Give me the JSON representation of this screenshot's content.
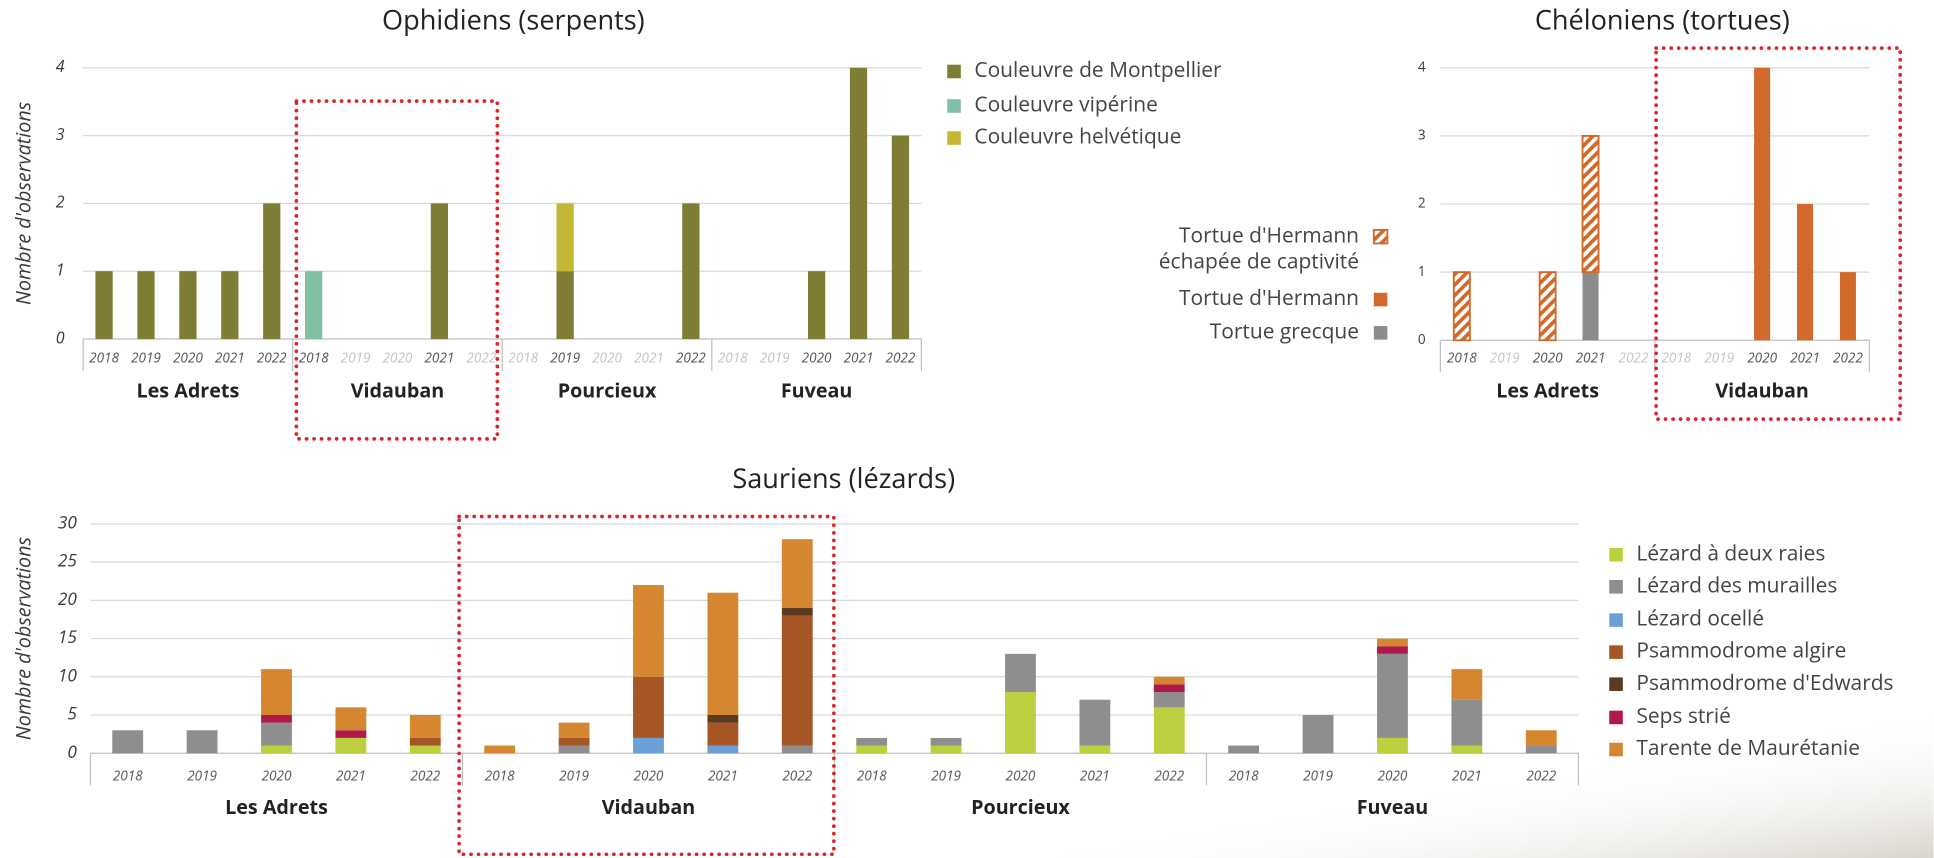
{
  "chart_data": [
    {
      "type": "bar",
      "stacked": true,
      "title": "Ophidiens (serpents)",
      "y_label": "Nombre d'observations",
      "groups": [
        "Les Adrets",
        "Vidauban",
        "Pourcieux",
        "Fuveau"
      ],
      "categories": [
        "2018",
        "2019",
        "2020",
        "2021",
        "2022",
        "2018",
        "2019",
        "2020",
        "2021",
        "2022",
        "2018",
        "2019",
        "2020",
        "2021",
        "2022",
        "2018",
        "2019",
        "2020",
        "2021",
        "2022"
      ],
      "series": [
        {
          "name": "Couleuvre de Montpellier",
          "color": "#7f7c33",
          "values": [
            1,
            1,
            1,
            1,
            2,
            0,
            0,
            0,
            2,
            0,
            0,
            1,
            0,
            0,
            2,
            0,
            0,
            1,
            4,
            3
          ]
        },
        {
          "name": "Couleuvre vipérine",
          "color": "#80c0a2",
          "values": [
            0,
            0,
            0,
            0,
            0,
            1,
            0,
            0,
            0,
            0,
            0,
            0,
            0,
            0,
            0,
            0,
            0,
            0,
            0,
            0
          ]
        },
        {
          "name": "Couleuvre helvétique",
          "color": "#c5b634",
          "values": [
            0,
            0,
            0,
            0,
            0,
            0,
            0,
            0,
            0,
            0,
            0,
            1,
            0,
            0,
            0,
            0,
            0,
            0,
            0,
            0
          ]
        }
      ],
      "ylim": [
        0,
        4
      ],
      "yticks": [
        0,
        1,
        2,
        3,
        4
      ],
      "grid": true,
      "legend": "right"
    },
    {
      "type": "bar",
      "stacked": true,
      "title": "Chéloniens (tortues)",
      "groups": [
        "Les Adrets",
        "Vidauban"
      ],
      "categories": [
        "2018",
        "2019",
        "2020",
        "2021",
        "2022",
        "2018",
        "2019",
        "2020",
        "2021",
        "2022"
      ],
      "series": [
        {
          "name": "Tortue grecque",
          "color": "#8c8c8c",
          "values": [
            0,
            0,
            0,
            1,
            0,
            0,
            0,
            0,
            0,
            0
          ]
        },
        {
          "name": "Tortue d'Hermann",
          "color": "#d0692a",
          "values": [
            0,
            0,
            0,
            0,
            0,
            0,
            0,
            4,
            2,
            1
          ]
        },
        {
          "name": "Tortue d'Hermann\néchapée de captivité",
          "color": "#d0692a",
          "pattern": "hatch",
          "values": [
            1,
            0,
            1,
            2,
            0,
            0,
            0,
            0,
            0,
            0
          ]
        }
      ],
      "ylim": [
        0,
        4
      ],
      "yticks": [
        0,
        1,
        2,
        3,
        4
      ],
      "grid": true,
      "legend": "left"
    },
    {
      "type": "bar",
      "stacked": true,
      "title": "Sauriens (lézards)",
      "y_label": "Nombre d'observations",
      "groups": [
        "Les Adrets",
        "Vidauban",
        "Pourcieux",
        "Fuveau"
      ],
      "categories": [
        "2018",
        "2019",
        "2020",
        "2021",
        "2022",
        "2018",
        "2019",
        "2020",
        "2021",
        "2022",
        "2018",
        "2019",
        "2020",
        "2021",
        "2022",
        "2018",
        "2019",
        "2020",
        "2021",
        "2022"
      ],
      "series": [
        {
          "name": "Lézard à deux raies",
          "color": "#bccf3f",
          "values": [
            0,
            0,
            1,
            2,
            1,
            0,
            0,
            0,
            0,
            0,
            1,
            1,
            8,
            1,
            6,
            0,
            0,
            2,
            1,
            0
          ]
        },
        {
          "name": "Lézard des murailles",
          "color": "#8e8e8e",
          "values": [
            3,
            3,
            3,
            0,
            0,
            0,
            1,
            0,
            0,
            1,
            1,
            1,
            5,
            6,
            2,
            1,
            5,
            11,
            6,
            1
          ]
        },
        {
          "name": "Lézard ocellé",
          "color": "#6b9fd5",
          "values": [
            0,
            0,
            0,
            0,
            0,
            0,
            0,
            2,
            1,
            0,
            0,
            0,
            0,
            0,
            0,
            0,
            0,
            0,
            0,
            0
          ]
        },
        {
          "name": "Psammodrome algire",
          "color": "#a65524",
          "values": [
            0,
            0,
            0,
            0,
            1,
            0,
            1,
            8,
            3,
            17,
            0,
            0,
            0,
            0,
            0,
            0,
            0,
            0,
            0,
            0
          ]
        },
        {
          "name": "Psammodrome d'Edwards",
          "color": "#5b3a1f",
          "values": [
            0,
            0,
            0,
            0,
            0,
            0,
            0,
            0,
            1,
            1,
            0,
            0,
            0,
            0,
            0,
            0,
            0,
            0,
            0,
            0
          ]
        },
        {
          "name": "Seps strié",
          "color": "#b0184b",
          "values": [
            0,
            0,
            1,
            1,
            0,
            0,
            0,
            0,
            0,
            0,
            0,
            0,
            0,
            0,
            1,
            0,
            0,
            1,
            0,
            0
          ]
        },
        {
          "name": "Tarente de Maurétanie",
          "color": "#d5872f",
          "values": [
            0,
            0,
            6,
            3,
            3,
            1,
            2,
            12,
            16,
            9,
            0,
            0,
            0,
            0,
            1,
            0,
            0,
            1,
            4,
            2
          ]
        }
      ],
      "ylim": [
        0,
        30
      ],
      "yticks": [
        0,
        5,
        10,
        15,
        20,
        25,
        30
      ],
      "grid": true,
      "legend": "right"
    }
  ]
}
